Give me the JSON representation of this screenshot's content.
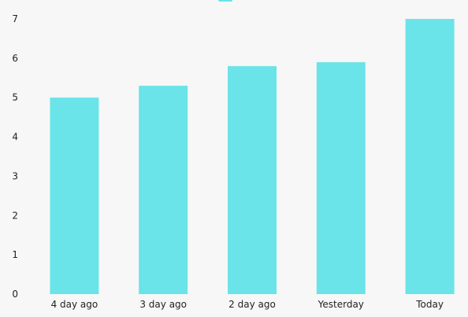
{
  "chart_data": {
    "type": "bar",
    "categories": [
      "4 day ago",
      "3 day ago",
      "2 day ago",
      "Yesterday",
      "Today"
    ],
    "series": [
      {
        "values": [
          5,
          5.3,
          5.8,
          5.9,
          7
        ]
      }
    ],
    "y_ticks": [
      "0",
      "1",
      "2",
      "3",
      "4",
      "5",
      "6",
      "7"
    ],
    "ylim": [
      0,
      7
    ],
    "grid": false,
    "legend_position": "top-center",
    "colors": {
      "bar": "#6ae4e8",
      "background": "#f7f7f7",
      "text": "#222222"
    }
  }
}
